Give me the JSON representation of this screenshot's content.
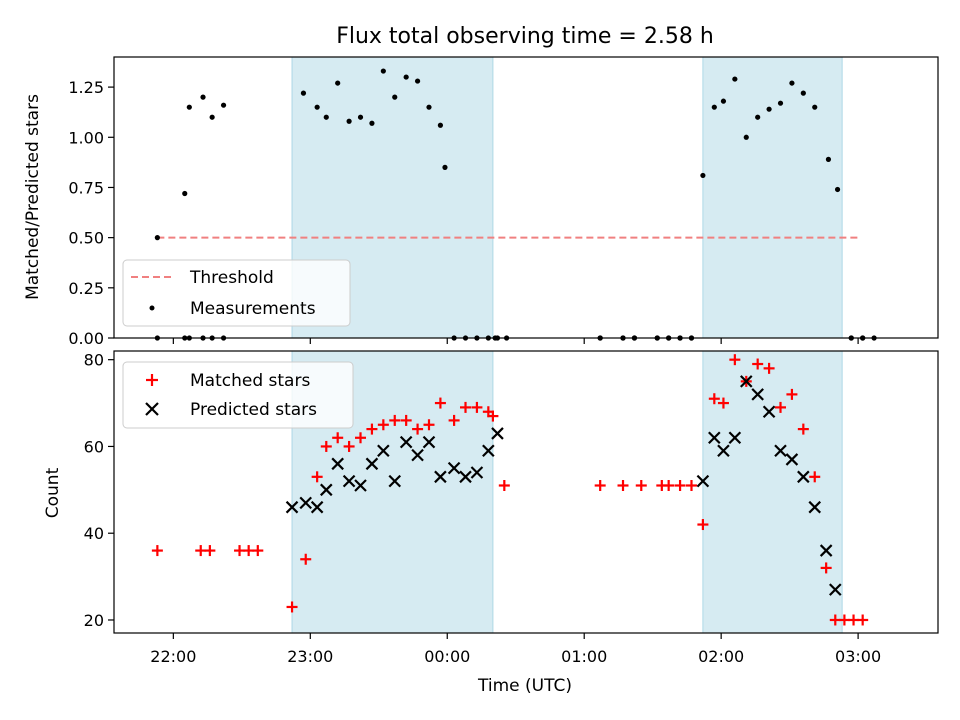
{
  "chart_data": [
    {
      "type": "scatter",
      "title": "Flux total observing time = 2.58 h",
      "xlabel": "",
      "ylabel": "Matched/Predicted stars",
      "ylim": [
        0,
        1.4
      ],
      "yticks": [
        0.0,
        0.25,
        0.5,
        0.75,
        1.0,
        1.25
      ],
      "ytick_labels": [
        "0.00",
        "0.25",
        "0.50",
        "0.75",
        "1.00",
        "1.25"
      ],
      "grid": false,
      "legend_position": "bottom-left",
      "shaded_intervals": [
        [
          "22:52",
          "00:20"
        ],
        [
          "01:52",
          "02:53"
        ]
      ],
      "threshold": {
        "name": "Threshold",
        "value": 0.5,
        "x_from": "21:53",
        "x_to": "03:00",
        "color": "#f08080"
      },
      "series": [
        {
          "name": "Measurements",
          "color": "#000000",
          "x": [
            "21:53",
            "22:05",
            "22:07",
            "22:13",
            "22:17",
            "22:22",
            "22:57",
            "23:03",
            "23:07",
            "23:12",
            "23:17",
            "23:22",
            "23:27",
            "23:32",
            "23:37",
            "23:42",
            "23:47",
            "23:52",
            "23:57",
            "23:59",
            "00:03",
            "00:08",
            "00:13",
            "00:18",
            "00:21",
            "00:26",
            "01:07",
            "01:17",
            "01:22",
            "01:32",
            "01:37",
            "01:42",
            "01:47",
            "01:52",
            "01:57",
            "02:01",
            "02:06",
            "02:11",
            "02:16",
            "02:21",
            "02:26",
            "02:31",
            "02:36",
            "02:41",
            "02:47",
            "02:51",
            "02:57",
            "03:02",
            "03:07"
          ],
          "y": [
            0.5,
            0.72,
            1.15,
            1.2,
            1.1,
            1.16,
            1.22,
            1.15,
            1.1,
            1.27,
            1.08,
            1.1,
            1.07,
            1.33,
            1.2,
            1.3,
            1.28,
            1.15,
            1.06,
            0.85,
            0.0,
            0.0,
            0.0,
            0.0,
            0.0,
            0.0,
            0.0,
            0.0,
            0.0,
            0.0,
            0.0,
            0.0,
            0.0,
            0.81,
            1.15,
            1.18,
            1.29,
            1.0,
            1.1,
            1.14,
            1.17,
            1.27,
            1.22,
            1.15,
            0.89,
            0.74,
            0.0,
            0.0,
            0.0
          ]
        },
        {
          "name": "",
          "color": "#000000",
          "x": [
            "21:53",
            "22:05",
            "22:07",
            "22:13",
            "22:17",
            "22:22",
            "00:22",
            "01:07",
            "01:17",
            "01:22",
            "01:32",
            "01:37",
            "01:42",
            "01:47",
            "02:57",
            "03:02"
          ],
          "y": [
            0,
            0,
            0,
            0,
            0,
            0,
            0,
            0,
            0,
            0,
            0,
            0,
            0,
            0,
            0,
            0
          ]
        }
      ]
    },
    {
      "type": "scatter",
      "title": "",
      "xlabel": "Time (UTC)",
      "ylabel": "Count",
      "ylim": [
        17,
        82
      ],
      "yticks": [
        20,
        40,
        60,
        80
      ],
      "ytick_labels": [
        "20",
        "40",
        "60",
        "80"
      ],
      "xticks": [
        "22:00",
        "23:00",
        "00:00",
        "01:00",
        "02:00",
        "03:00"
      ],
      "grid": false,
      "legend_position": "top-left",
      "shaded_intervals": [
        [
          "22:52",
          "00:20"
        ],
        [
          "01:52",
          "02:53"
        ]
      ],
      "series": [
        {
          "name": "Matched stars",
          "marker": "+",
          "color": "#ff0000",
          "x": [
            "21:53",
            "22:12",
            "22:16",
            "22:29",
            "22:33",
            "22:37",
            "22:52",
            "22:58",
            "23:03",
            "23:07",
            "23:12",
            "23:17",
            "23:22",
            "23:27",
            "23:32",
            "23:37",
            "23:42",
            "23:47",
            "23:52",
            "23:57",
            "00:03",
            "00:08",
            "00:13",
            "00:18",
            "00:20",
            "00:25",
            "01:07",
            "01:17",
            "01:25",
            "01:34",
            "01:37",
            "01:42",
            "01:47",
            "01:52",
            "01:57",
            "02:01",
            "02:06",
            "02:11",
            "02:16",
            "02:21",
            "02:26",
            "02:31",
            "02:36",
            "02:41",
            "02:46",
            "02:50",
            "02:54",
            "02:58",
            "03:02"
          ],
          "y": [
            36,
            36,
            36,
            36,
            36,
            36,
            23,
            34,
            53,
            60,
            62,
            60,
            62,
            64,
            65,
            66,
            66,
            64,
            65,
            70,
            66,
            69,
            69,
            68,
            67,
            51,
            51,
            51,
            51,
            51,
            51,
            51,
            51,
            42,
            71,
            70,
            80,
            75,
            79,
            78,
            69,
            72,
            64,
            53,
            32,
            20,
            20,
            20,
            20
          ]
        },
        {
          "name": "Predicted stars",
          "marker": "x",
          "color": "#000000",
          "x": [
            "22:52",
            "22:58",
            "23:03",
            "23:07",
            "23:12",
            "23:17",
            "23:22",
            "23:27",
            "23:32",
            "23:37",
            "23:42",
            "23:47",
            "23:52",
            "23:57",
            "00:03",
            "00:08",
            "00:13",
            "00:18",
            "00:22",
            "01:52",
            "01:57",
            "02:01",
            "02:06",
            "02:11",
            "02:16",
            "02:21",
            "02:26",
            "02:31",
            "02:36",
            "02:41",
            "02:46",
            "02:50"
          ],
          "y": [
            46,
            47,
            46,
            50,
            56,
            52,
            51,
            56,
            59,
            52,
            61,
            58,
            61,
            53,
            55,
            53,
            54,
            59,
            63,
            52,
            62,
            59,
            62,
            75,
            72,
            68,
            59,
            57,
            53,
            46,
            36,
            27
          ]
        }
      ]
    }
  ]
}
